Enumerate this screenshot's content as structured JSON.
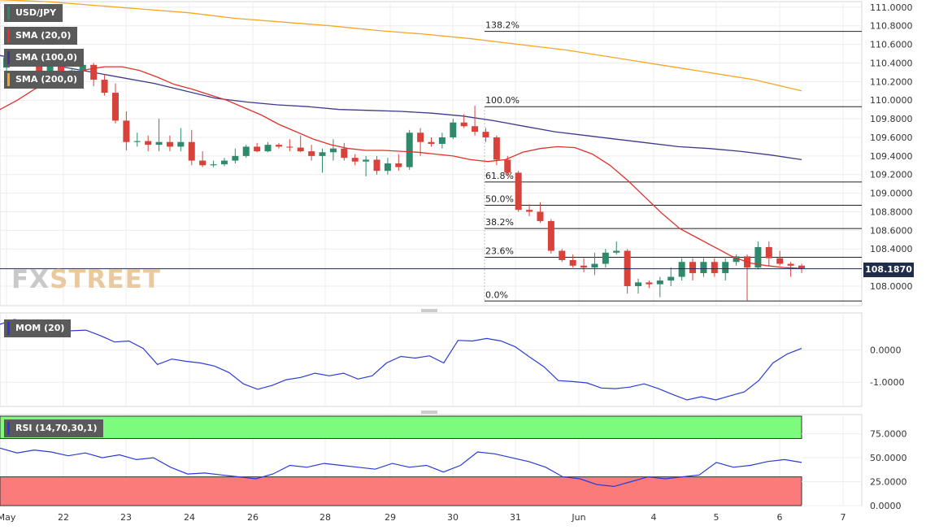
{
  "chart_data": [
    {
      "type": "candlestick",
      "symbol": "USD/JPY",
      "overlays": [
        "SMA (20,0)",
        "SMA (100,0)",
        "SMA (200,0)"
      ],
      "last_price": "108.1870",
      "ylim": [
        107.79,
        111.06
      ],
      "y_ticks": [
        "111.0000",
        "110.8000",
        "110.6000",
        "110.4000",
        "110.2000",
        "110.0000",
        "109.8000",
        "109.6000",
        "109.4000",
        "109.2000",
        "109.0000",
        "108.8000",
        "108.6000",
        "108.4000",
        "108.2000",
        "108.0000"
      ],
      "x_ticks": [
        "May",
        "22",
        "23",
        "24",
        "26",
        "28",
        "29",
        "30",
        "31",
        "Jun",
        "4",
        "5",
        "6",
        "7"
      ],
      "fibonacci": [
        {
          "label": "138.2%",
          "level": 110.74
        },
        {
          "label": "100.0%",
          "level": 109.93
        },
        {
          "label": "61.8%",
          "level": 109.12
        },
        {
          "label": "50.0%",
          "level": 108.87
        },
        {
          "label": "38.2%",
          "level": 108.62
        },
        {
          "label": "23.6%",
          "level": 108.31
        },
        {
          "label": "0.0%",
          "level": 107.84
        }
      ],
      "candles": [
        [
          110.35,
          110.52,
          110.28,
          110.46
        ],
        [
          110.47,
          110.52,
          110.36,
          110.42
        ],
        [
          110.42,
          110.5,
          110.36,
          110.38
        ],
        [
          110.38,
          110.41,
          110.22,
          110.28
        ],
        [
          110.28,
          110.45,
          110.2,
          110.4
        ],
        [
          110.4,
          110.48,
          110.2,
          110.25
        ],
        [
          110.25,
          110.35,
          110.15,
          110.32
        ],
        [
          110.32,
          110.4,
          110.22,
          110.38
        ],
        [
          110.38,
          110.4,
          110.15,
          110.22
        ],
        [
          110.22,
          110.28,
          110.05,
          110.08
        ],
        [
          110.08,
          110.18,
          109.75,
          109.78
        ],
        [
          109.78,
          109.88,
          109.46,
          109.55
        ],
        [
          109.55,
          109.65,
          109.5,
          109.56
        ],
        [
          109.56,
          109.62,
          109.45,
          109.52
        ],
        [
          109.52,
          109.8,
          109.45,
          109.55
        ],
        [
          109.55,
          109.62,
          109.45,
          109.5
        ],
        [
          109.5,
          109.7,
          109.45,
          109.55
        ],
        [
          109.55,
          109.68,
          109.3,
          109.35
        ],
        [
          109.35,
          109.45,
          109.28,
          109.3
        ],
        [
          109.3,
          109.35,
          109.28,
          109.31
        ],
        [
          109.31,
          109.38,
          109.29,
          109.35
        ],
        [
          109.35,
          109.48,
          109.32,
          109.4
        ],
        [
          109.4,
          109.52,
          109.38,
          109.5
        ],
        [
          109.5,
          109.54,
          109.44,
          109.45
        ],
        [
          109.45,
          109.55,
          109.44,
          109.52
        ],
        [
          109.52,
          109.54,
          109.48,
          109.5
        ],
        [
          109.5,
          109.58,
          109.45,
          109.49
        ],
        [
          109.49,
          109.62,
          109.44,
          109.45
        ],
        [
          109.45,
          109.52,
          109.35,
          109.4
        ],
        [
          109.4,
          109.48,
          109.22,
          109.44
        ],
        [
          109.44,
          109.58,
          109.35,
          109.48
        ],
        [
          109.48,
          109.54,
          109.35,
          109.38
        ],
        [
          109.38,
          109.42,
          109.3,
          109.34
        ],
        [
          109.34,
          109.4,
          109.18,
          109.36
        ],
        [
          109.36,
          109.4,
          109.2,
          109.24
        ],
        [
          109.24,
          109.38,
          109.2,
          109.32
        ],
        [
          109.32,
          109.42,
          109.24,
          109.28
        ],
        [
          109.28,
          109.68,
          109.25,
          109.65
        ],
        [
          109.65,
          109.7,
          109.4,
          109.55
        ],
        [
          109.55,
          109.6,
          109.5,
          109.53
        ],
        [
          109.53,
          109.65,
          109.48,
          109.6
        ],
        [
          109.6,
          109.8,
          109.58,
          109.76
        ],
        [
          109.76,
          109.85,
          109.7,
          109.72
        ],
        [
          109.72,
          109.94,
          109.62,
          109.66
        ],
        [
          109.66,
          109.7,
          109.55,
          109.6
        ],
        [
          109.6,
          109.62,
          109.3,
          109.36
        ],
        [
          109.36,
          109.4,
          109.18,
          109.22
        ],
        [
          109.22,
          109.24,
          108.8,
          108.82
        ],
        [
          108.82,
          108.88,
          108.75,
          108.8
        ],
        [
          108.8,
          108.9,
          108.68,
          108.7
        ],
        [
          108.7,
          108.72,
          108.35,
          108.38
        ],
        [
          108.38,
          108.4,
          108.26,
          108.28
        ],
        [
          108.28,
          108.34,
          108.2,
          108.22
        ],
        [
          108.22,
          108.3,
          108.15,
          108.2
        ],
        [
          108.2,
          108.36,
          108.12,
          108.24
        ],
        [
          108.24,
          108.4,
          108.2,
          108.36
        ],
        [
          108.36,
          108.48,
          108.34,
          108.38
        ],
        [
          108.38,
          108.4,
          107.92,
          108.0
        ],
        [
          108.0,
          108.08,
          107.92,
          108.04
        ],
        [
          108.04,
          108.06,
          107.98,
          108.02
        ],
        [
          108.02,
          108.1,
          107.88,
          108.06
        ],
        [
          108.06,
          108.2,
          108.0,
          108.1
        ],
        [
          108.1,
          108.3,
          108.06,
          108.26
        ],
        [
          108.26,
          108.3,
          108.06,
          108.14
        ],
        [
          108.14,
          108.3,
          108.1,
          108.26
        ],
        [
          108.26,
          108.3,
          108.1,
          108.14
        ],
        [
          108.14,
          108.3,
          108.06,
          108.26
        ],
        [
          108.26,
          108.34,
          108.22,
          108.32
        ],
        [
          108.32,
          108.34,
          107.84,
          108.2
        ],
        [
          108.2,
          108.48,
          108.18,
          108.42
        ],
        [
          108.42,
          108.48,
          108.22,
          108.3
        ],
        [
          108.3,
          108.38,
          108.22,
          108.24
        ],
        [
          108.24,
          108.26,
          108.1,
          108.22
        ],
        [
          108.22,
          108.24,
          108.14,
          108.19
        ]
      ],
      "sma20": [
        109.9,
        110.0,
        110.12,
        110.2,
        110.28,
        110.33,
        110.36,
        110.36,
        110.32,
        110.25,
        110.17,
        110.12,
        110.06,
        110.0,
        109.92,
        109.84,
        109.74,
        109.66,
        109.58,
        109.52,
        109.48,
        109.46,
        109.46,
        109.45,
        109.44,
        109.42,
        109.4,
        109.36,
        109.34,
        109.36,
        109.44,
        109.48,
        109.5,
        109.49,
        109.42,
        109.3,
        109.14,
        108.96,
        108.78,
        108.62,
        108.52,
        108.42,
        108.32,
        108.25,
        108.22,
        108.2,
        108.19
      ],
      "sma100": [
        110.48,
        110.42,
        110.36,
        110.3,
        110.24,
        110.18,
        110.1,
        110.02,
        109.98,
        109.95,
        109.93,
        109.9,
        109.89,
        109.88,
        109.86,
        109.83,
        109.78,
        109.72,
        109.66,
        109.62,
        109.58,
        109.54,
        109.5,
        109.48,
        109.45,
        109.41,
        109.36
      ],
      "sma200": [
        111.08,
        111.06,
        111.02,
        110.98,
        110.94,
        110.88,
        110.84,
        110.8,
        110.75,
        110.71,
        110.66,
        110.6,
        110.54,
        110.46,
        110.38,
        110.3,
        110.22,
        110.1
      ]
    },
    {
      "type": "line",
      "name": "MOM (20)",
      "y_ticks": [
        "0.0000",
        "-1.0000"
      ],
      "ylim": [
        -1.55,
        0.95
      ],
      "values": [
        0.8,
        0.95,
        0.88,
        0.6,
        0.62,
        0.6,
        0.62,
        0.45,
        0.25,
        0.28,
        0.05,
        -0.45,
        -0.28,
        -0.35,
        -0.4,
        -0.5,
        -0.7,
        -1.05,
        -1.22,
        -1.1,
        -0.92,
        -0.85,
        -0.72,
        -0.8,
        -0.72,
        -0.9,
        -0.8,
        -0.4,
        -0.2,
        -0.25,
        -0.18,
        -0.4,
        0.3,
        0.28,
        0.36,
        0.28,
        0.1,
        -0.22,
        -0.52,
        -0.95,
        -0.98,
        -1.02,
        -1.18,
        -1.2,
        -1.15,
        -1.05,
        -1.2,
        -1.38,
        -1.55,
        -1.45,
        -1.55,
        -1.42,
        -1.3,
        -0.95,
        -0.4,
        -0.12,
        0.05
      ]
    },
    {
      "type": "line",
      "name": "RSI (14,70,30,1)",
      "y_ticks": [
        "75.0000",
        "50.0000",
        "25.0000",
        "0.0000"
      ],
      "ylim": [
        0,
        95
      ],
      "overbought": 70,
      "oversold": 30,
      "values": [
        60,
        55,
        58,
        56,
        52,
        55,
        50,
        53,
        48,
        50,
        40,
        33,
        34,
        32,
        30,
        28,
        33,
        42,
        40,
        44,
        42,
        40,
        38,
        44,
        40,
        42,
        35,
        42,
        56,
        54,
        50,
        46,
        40,
        30,
        28,
        22,
        20,
        25,
        30,
        28,
        30,
        32,
        45,
        40,
        42,
        46,
        48,
        45
      ]
    }
  ]
}
